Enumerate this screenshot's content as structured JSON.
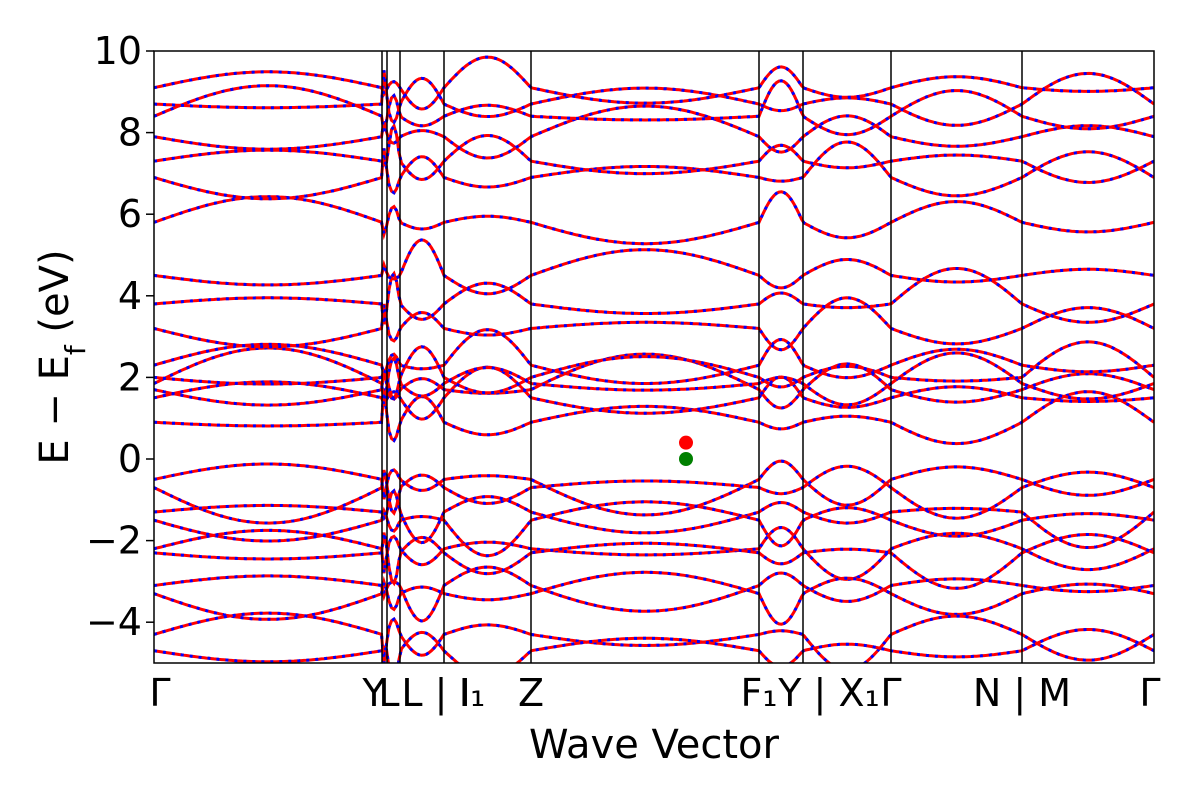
{
  "chart_data": {
    "type": "line",
    "xlabel": "Wave Vector",
    "ylabel_main": "E − E",
    "ylabel_sub": "f",
    "ylabel_unit": " (eV)",
    "ylim": [
      -5,
      10
    ],
    "yticks": [
      -4,
      -2,
      0,
      2,
      4,
      6,
      8,
      10
    ],
    "ytick_labels": [
      "−4",
      "−2",
      "0",
      "2",
      "4",
      "6",
      "8",
      "10"
    ],
    "xlim": [
      0,
      1
    ],
    "kpoint_ticks": [
      {
        "x": 0.0,
        "label": "Γ"
      },
      {
        "x": 0.228,
        "label": "Y"
      },
      {
        "x": 0.233,
        "label": "L"
      },
      {
        "x": 0.246,
        "label": "L | I"
      },
      {
        "x": 0.29,
        "label": "I₁"
      },
      {
        "x": 0.377,
        "label": "Z"
      },
      {
        "x": 0.605,
        "label": "F₁"
      },
      {
        "x": 0.649,
        "label": "Y | X₁"
      },
      {
        "x": 0.737,
        "label": "Γ"
      },
      {
        "x": 0.868,
        "label": "N | M"
      },
      {
        "x": 1.0,
        "label": "Γ"
      }
    ],
    "series": [
      {
        "color": "#ff0000",
        "style": "solid",
        "width": 3
      },
      {
        "color": "#0000ff",
        "style": "dotted",
        "width": 3
      }
    ],
    "markers": [
      {
        "x": 0.532,
        "y": 0.4,
        "color": "#ff0000"
      },
      {
        "x": 0.532,
        "y": 0.0,
        "color": "#008000"
      }
    ],
    "band_energies_at_gamma": {
      "conduction": [
        0.9,
        1.5,
        1.7,
        1.85,
        2.0,
        2.3,
        3.2,
        3.8,
        4.5,
        5.8,
        6.9,
        7.3,
        7.9,
        8.4,
        8.7,
        9.1
      ],
      "valence": [
        -0.5,
        -0.7,
        -1.3,
        -1.5,
        -2.2,
        -2.3,
        -3.1,
        -3.3,
        -4.3,
        -4.7
      ]
    }
  }
}
